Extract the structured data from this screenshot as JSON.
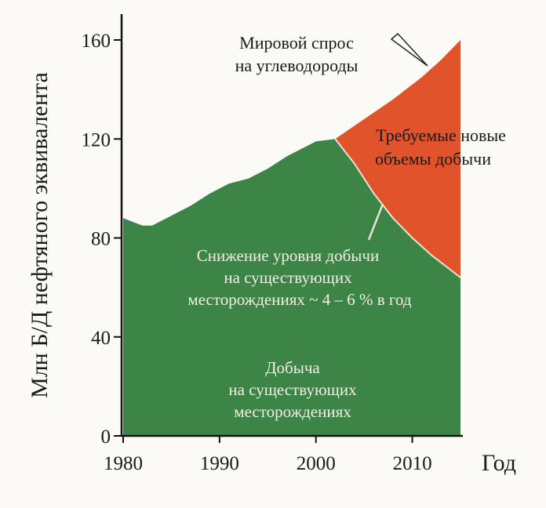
{
  "chart_data": {
    "type": "area",
    "xlabel": "Год",
    "ylabel": "Млн Б/Д нефтяного эквивалента",
    "xlim": [
      1980,
      2015
    ],
    "ylim": [
      0,
      160
    ],
    "x_ticks": [
      "1980",
      "1990",
      "2000",
      "2010"
    ],
    "y_ticks": [
      "0",
      "40",
      "80",
      "120",
      "160"
    ],
    "series": [
      {
        "name": "Мировой спрос на углеводороды",
        "x": [
          1980,
          1982,
          1983,
          1985,
          1987,
          1989,
          1991,
          1993,
          1995,
          1997,
          1999,
          2000,
          2002,
          2005,
          2008,
          2011,
          2013,
          2015
        ],
        "values": [
          88,
          85,
          85,
          89,
          93,
          98,
          102,
          104,
          108,
          113,
          117,
          119,
          120,
          128,
          136,
          145,
          152,
          160
        ]
      },
      {
        "name": "Добыча на существующих месторождениях",
        "x": [
          1980,
          1982,
          1983,
          1985,
          1987,
          1989,
          1991,
          1993,
          1995,
          1997,
          1999,
          2000,
          2002,
          2004,
          2006,
          2008,
          2010,
          2012,
          2015
        ],
        "values": [
          88,
          85,
          85,
          89,
          93,
          98,
          102,
          104,
          108,
          113,
          117,
          119,
          120,
          110,
          98,
          88,
          80,
          73,
          64
        ]
      }
    ],
    "annotations": [
      {
        "line1": "Мировой спрос",
        "line2": "на углеводороды"
      },
      {
        "line1": "Требуемые новые",
        "line2": "объемы добычи"
      },
      {
        "line1": "Снижение уровня добычи",
        "line2": "на существующих",
        "line3": "месторождениях ~ 4 – 6 % в год"
      },
      {
        "line1": "Добыча",
        "line2": "на существующих",
        "line3": "месторождениях"
      }
    ],
    "colors": {
      "production": "#3d8447",
      "new_volumes": "#e0532b",
      "demand_line": "#e8e2d4"
    },
    "grid": false
  }
}
